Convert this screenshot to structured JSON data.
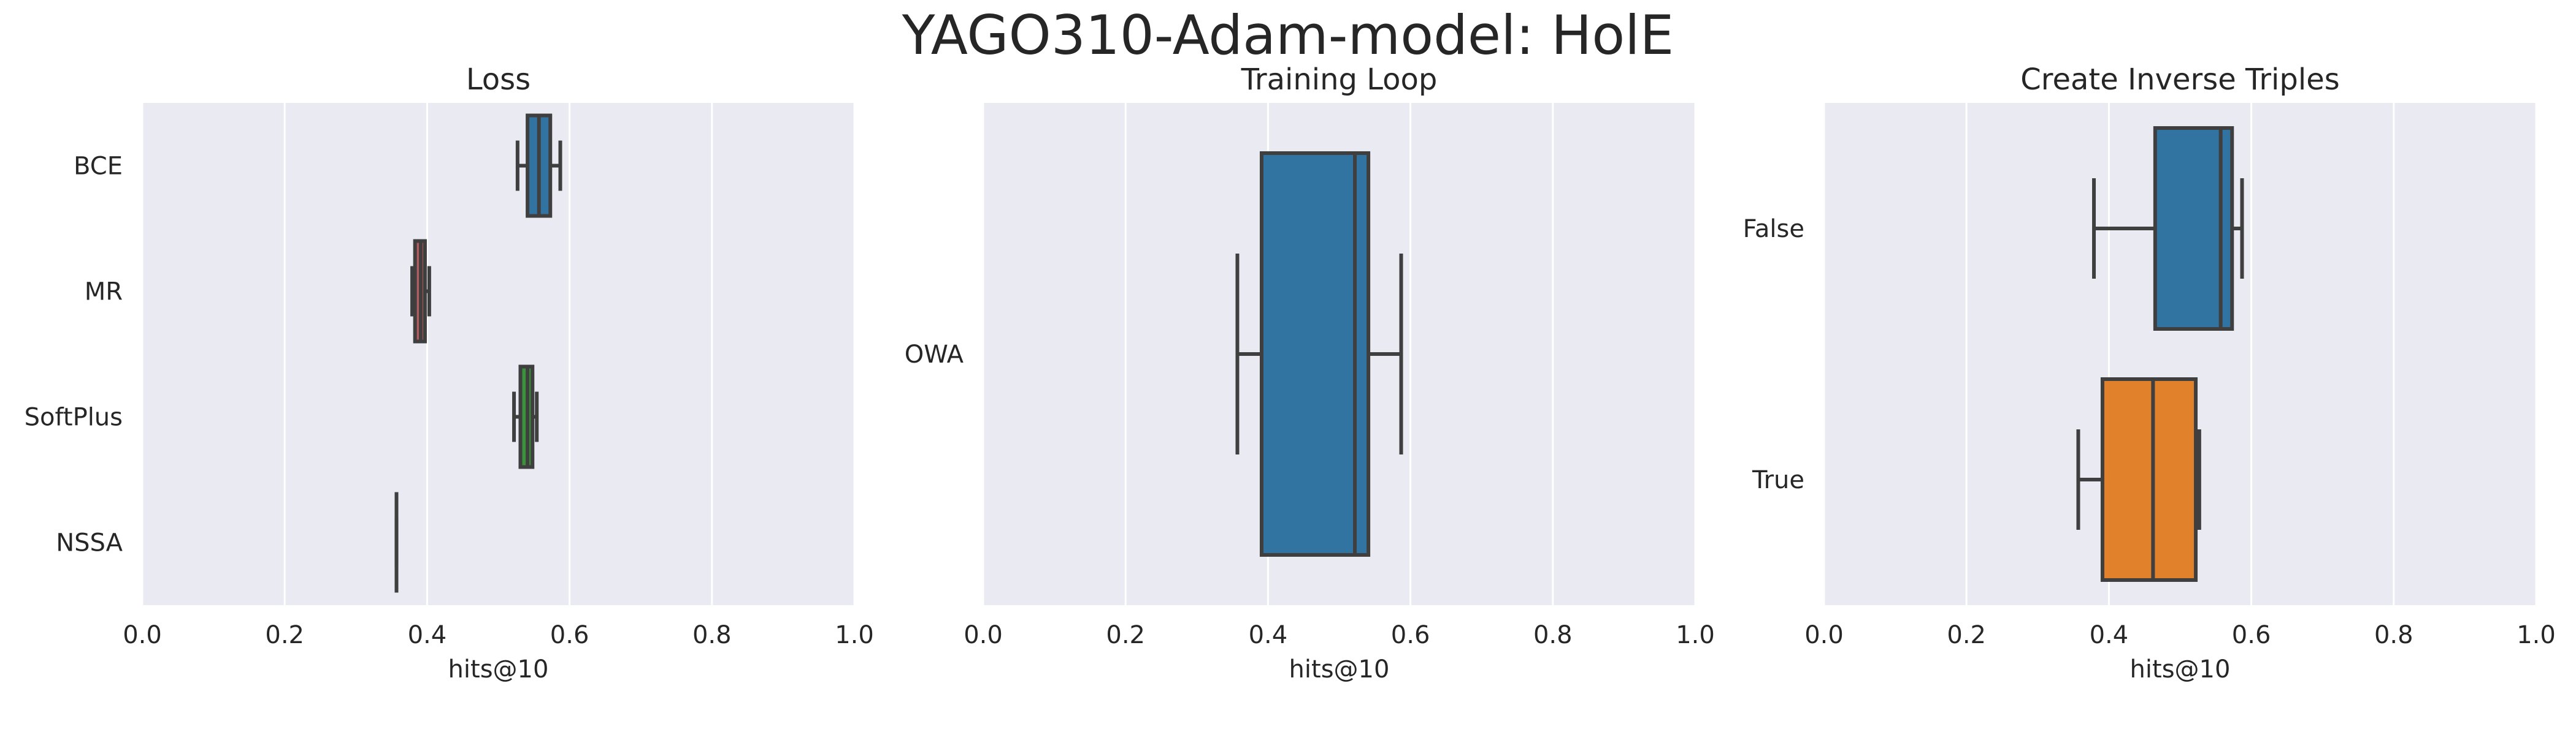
{
  "figure": {
    "title": "YAGO310-Adam-model: HolE"
  },
  "chart_data": [
    {
      "type": "box",
      "orientation": "horizontal",
      "title": "Loss",
      "xlabel": "hits@10",
      "ylabel": "",
      "xlim": [
        0.0,
        1.0
      ],
      "xticks": [
        "0.0",
        "0.2",
        "0.4",
        "0.6",
        "0.8",
        "1.0"
      ],
      "grid": true,
      "categories": [
        "BCE",
        "MR",
        "SoftPlus",
        "NSSA"
      ],
      "boxes": [
        {
          "category": "BCE",
          "color": "#3274a1",
          "whislo": 0.527,
          "q1": 0.541,
          "med": 0.557,
          "q3": 0.573,
          "whishi": 0.587
        },
        {
          "category": "MR",
          "color": "#b55d60",
          "whislo": 0.379,
          "q1": 0.383,
          "med": 0.391,
          "q3": 0.397,
          "whishi": 0.403
        },
        {
          "category": "SoftPlus",
          "color": "#3a923a",
          "whislo": 0.522,
          "q1": 0.531,
          "med": 0.541,
          "q3": 0.548,
          "whishi": 0.554
        },
        {
          "category": "NSSA",
          "color": "#8c613c",
          "whislo": 0.357,
          "q1": 0.357,
          "med": 0.357,
          "q3": 0.357,
          "whishi": 0.357
        }
      ]
    },
    {
      "type": "box",
      "orientation": "horizontal",
      "title": "Training Loop",
      "xlabel": "hits@10",
      "ylabel": "",
      "xlim": [
        0.0,
        1.0
      ],
      "xticks": [
        "0.0",
        "0.2",
        "0.4",
        "0.6",
        "0.8",
        "1.0"
      ],
      "grid": true,
      "categories": [
        "OWA"
      ],
      "boxes": [
        {
          "category": "OWA",
          "color": "#3274a1",
          "whislo": 0.357,
          "q1": 0.391,
          "med": 0.522,
          "q3": 0.541,
          "whishi": 0.587
        }
      ]
    },
    {
      "type": "box",
      "orientation": "horizontal",
      "title": "Create Inverse Triples",
      "xlabel": "hits@10",
      "ylabel": "",
      "xlim": [
        0.0,
        1.0
      ],
      "xticks": [
        "0.0",
        "0.2",
        "0.4",
        "0.6",
        "0.8",
        "1.0"
      ],
      "grid": true,
      "categories": [
        "False",
        "True"
      ],
      "boxes": [
        {
          "category": "False",
          "color": "#3274a1",
          "whislo": 0.379,
          "q1": 0.465,
          "med": 0.557,
          "q3": 0.573,
          "whishi": 0.587
        },
        {
          "category": "True",
          "color": "#e1812c",
          "whislo": 0.357,
          "q1": 0.391,
          "med": 0.462,
          "q3": 0.522,
          "whishi": 0.527
        }
      ]
    }
  ]
}
